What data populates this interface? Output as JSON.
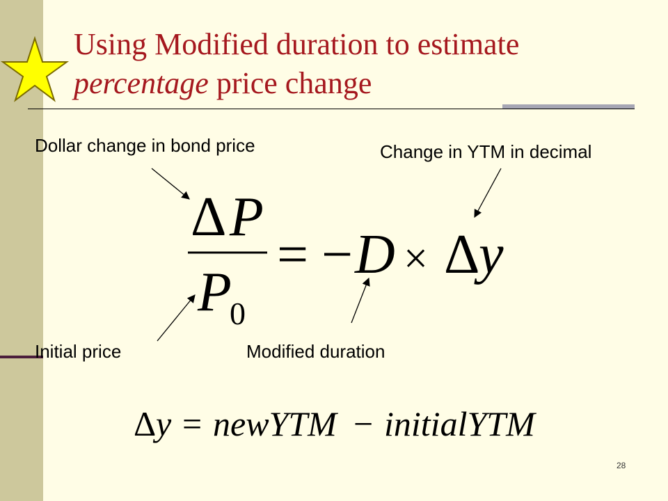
{
  "slide": {
    "title_line1": "Using Modified duration to estimate",
    "title_italic": "percentage",
    "title_rest": " price change",
    "page_number": "28"
  },
  "labels": {
    "dollar_change": "Dollar change in bond price",
    "ytm_change": "Change in YTM in decimal",
    "initial_price": "Initial price",
    "modified_duration": "Modified duration"
  },
  "formula1": {
    "delta": "Δ",
    "p": "P",
    "p0_base": "P",
    "p0_sub": "0",
    "equals": "=",
    "minus": "−",
    "d": "D",
    "times": "×",
    "y": "y"
  },
  "formula2": {
    "delta": "Δ",
    "y": "y",
    "equals": "=",
    "new_ytm": "newYTM",
    "minus": "−",
    "initial_ytm": "initialYTM"
  },
  "colors": {
    "title": "#a5181e",
    "background": "#fffde6",
    "bar": "#cdc89c",
    "star": "#ffff00"
  }
}
